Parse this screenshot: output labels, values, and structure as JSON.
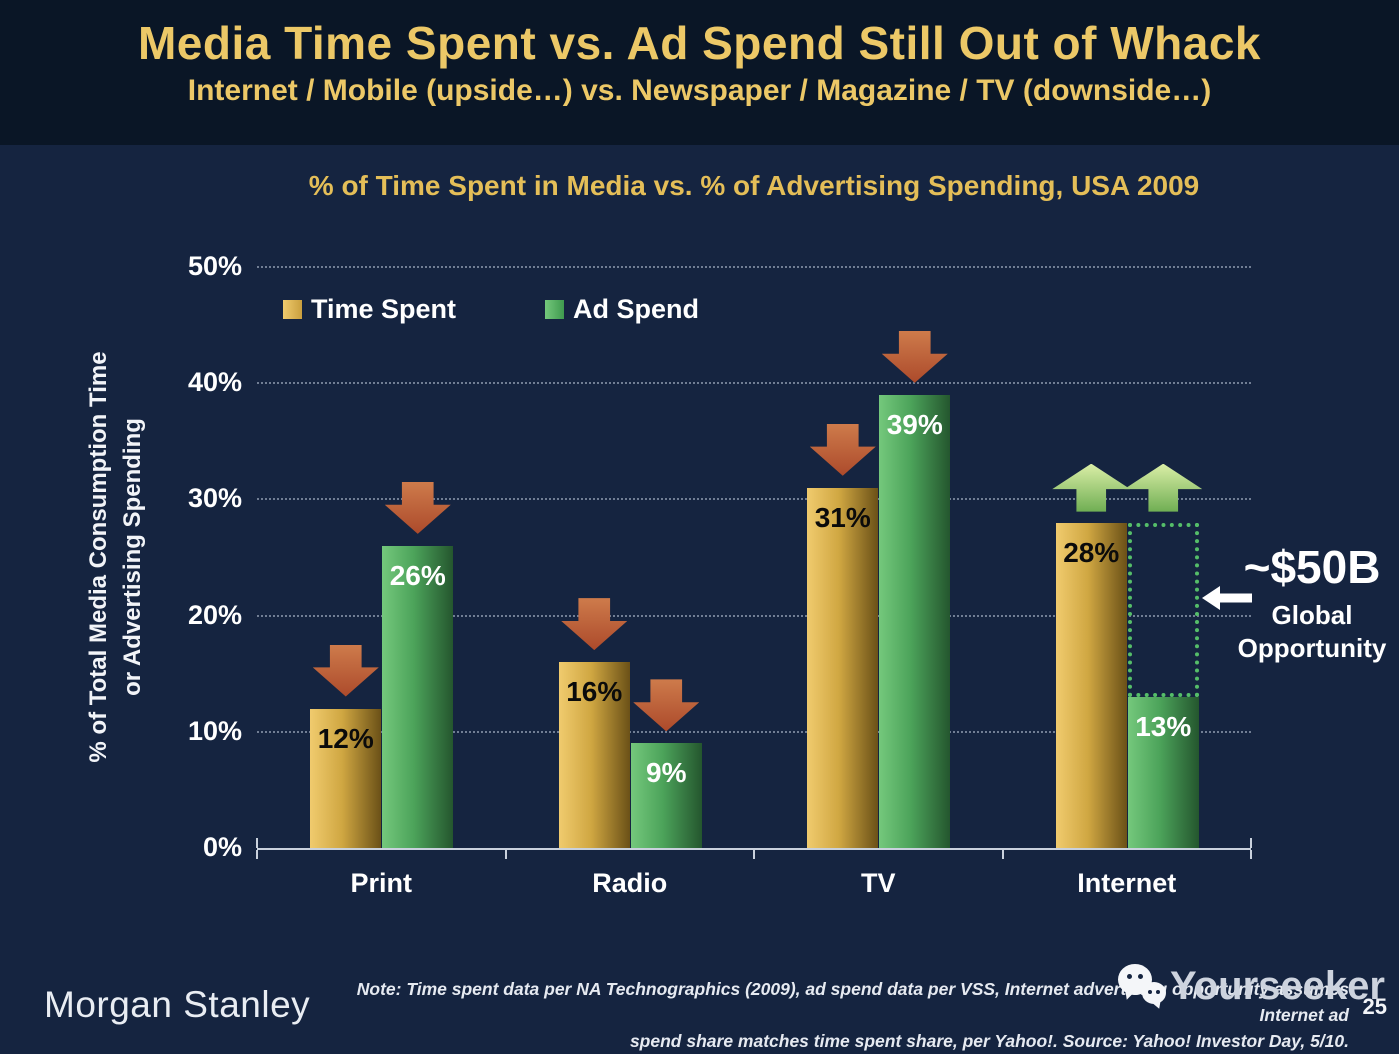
{
  "slide": {
    "title": "Media Time Spent vs. Ad Spend Still Out of Whack",
    "subtitle": "Internet / Mobile (upside…) vs. Newspaper / Magazine / TV (downside…)",
    "brand": "Morgan Stanley",
    "note_line1": "Note: Time spent data per NA Technographics (2009), ad spend data per VSS, Internet advertising opportunity assumes Internet ad",
    "note_line2": "spend share matches time spent share, per Yahoo!. Source: Yahoo! Investor Day, 5/10.",
    "page_number": "25",
    "watermark": "Yourseeker"
  },
  "chart_data": {
    "type": "bar",
    "title": "% of Time Spent in Media vs. % of Advertising Spending, USA 2009",
    "ylabel_line1": "% of Total Media Consumption Time",
    "ylabel_line2": "or Advertising Spending",
    "categories": [
      "Print",
      "Radio",
      "TV",
      "Internet"
    ],
    "series": [
      {
        "name": "Time Spent",
        "values": [
          12,
          16,
          31,
          28
        ],
        "labels": [
          "12%",
          "16%",
          "31%",
          "28%"
        ],
        "color_light": "#F0CB6E",
        "color_mid": "#D0A742",
        "color_dark": "#6B5117",
        "label_color": "#0B0B0B"
      },
      {
        "name": "Ad Spend",
        "values": [
          26,
          9,
          39,
          13
        ],
        "labels": [
          "26%",
          "9%",
          "39%",
          "13%"
        ],
        "color_light": "#74C87C",
        "color_mid": "#4CA35A",
        "color_dark": "#24562E",
        "label_color": "#FFFFFF"
      }
    ],
    "ylim": [
      0,
      50
    ],
    "yticks": [
      "0%",
      "10%",
      "20%",
      "30%",
      "40%",
      "50%"
    ],
    "grid": "dotted horizontal gridlines",
    "legend_position": "upper-left inside plot",
    "trend_arrows": [
      [
        "down",
        "down"
      ],
      [
        "down",
        "down"
      ],
      [
        "down",
        "down"
      ],
      [
        "up",
        "up"
      ]
    ],
    "annotation": {
      "value": "~$50B",
      "line1": "Global",
      "line2": "Opportunity",
      "arrow_direction": "left",
      "points_to": "gap between Internet time spent 28% and ad spend 13%"
    },
    "colors": {
      "down_arrow_top": "#CE7B4B",
      "down_arrow_bottom": "#AC4A2B",
      "up_arrow_top": "#DAEEA6",
      "up_arrow_bottom": "#6FAE53",
      "gap_box": "#55BE69",
      "title_gold": "#ECC867"
    }
  }
}
